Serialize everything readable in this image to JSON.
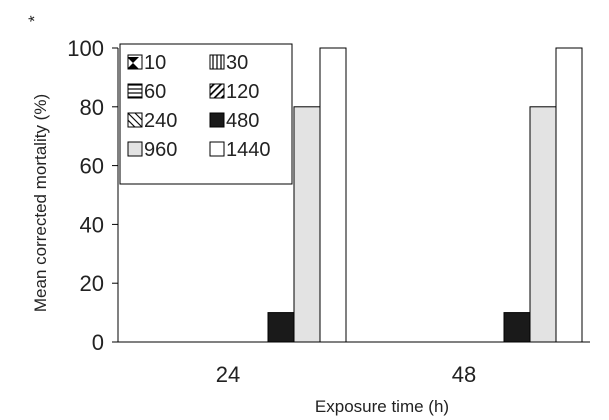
{
  "chart_data": {
    "type": "bar",
    "categories": [
      "24",
      "48"
    ],
    "series": [
      {
        "name": "10",
        "values": [
          0,
          0
        ],
        "pattern": "hourglass",
        "color": "#000000"
      },
      {
        "name": "30",
        "values": [
          0,
          0
        ],
        "pattern": "vlines",
        "color": "#000000"
      },
      {
        "name": "60",
        "values": [
          0,
          0
        ],
        "pattern": "hlines",
        "color": "#000000"
      },
      {
        "name": "120",
        "values": [
          0,
          0
        ],
        "pattern": "diag-dark",
        "color": "#000000"
      },
      {
        "name": "240",
        "values": [
          0,
          0
        ],
        "pattern": "diag-light",
        "color": "#000000"
      },
      {
        "name": "480",
        "values": [
          10,
          10
        ],
        "pattern": "solid",
        "color": "#1a1a1a"
      },
      {
        "name": "960",
        "values": [
          80,
          80
        ],
        "pattern": "solid",
        "color": "#e3e3e3"
      },
      {
        "name": "1440",
        "values": [
          100,
          100
        ],
        "pattern": "solid",
        "color": "#ffffff"
      }
    ],
    "xlabel": "Exposure time (h)",
    "ylabel": "Mean corrected mortality (%)",
    "ylabel_superscript": "*",
    "ylim": [
      0,
      100
    ],
    "yticks": [
      0,
      20,
      40,
      60,
      80,
      100
    ],
    "grid": false,
    "legend_position": "top-left"
  }
}
